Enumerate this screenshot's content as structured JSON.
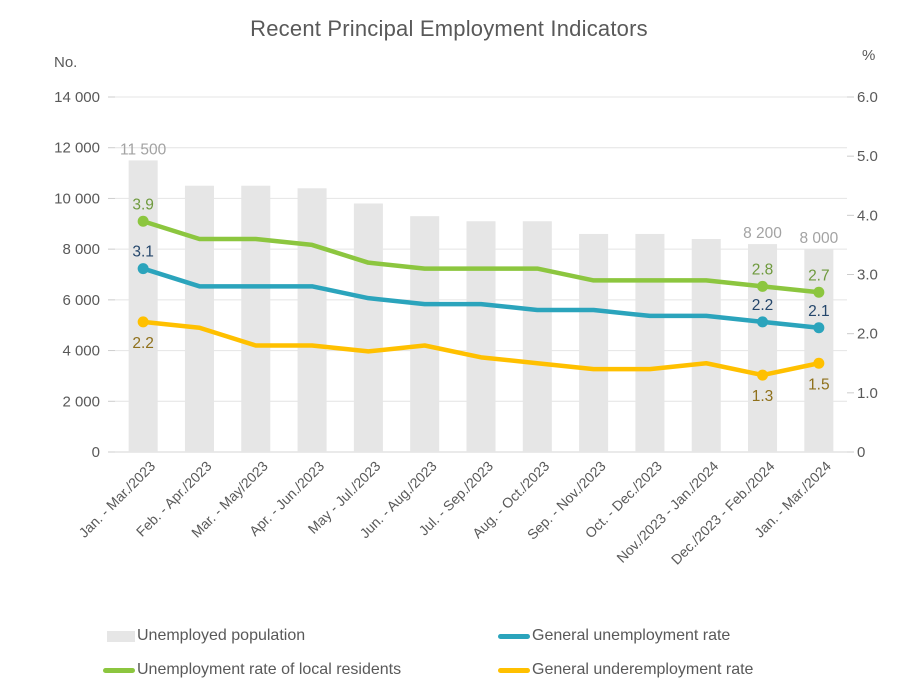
{
  "title": "Recent Principal Employment Indicators",
  "chart_data": {
    "type": "combo-bar-line",
    "title": "Recent Principal Employment Indicators",
    "grid": "horizontal",
    "categories": [
      "Jan. - Mar./2023",
      "Feb. - Apr./2023",
      "Mar. - May/2023",
      "Apr. - Jun./2023",
      "May - Jul./2023",
      "Jun. - Aug./2023",
      "Jul. - Sep./2023",
      "Aug. - Oct./2023",
      "Sep. - Nov./2023",
      "Oct. - Dec./2023",
      "Nov./2023 - Jan./2024",
      "Dec./2023 - Feb./2024",
      "Jan. - Mar./2024"
    ],
    "left_axis": {
      "unit_label": "No.",
      "min": 0,
      "max": 14000,
      "step": 2000,
      "tick_labels": [
        "14 000",
        "12 000",
        "10 000",
        "8 000",
        "6 000",
        "4 000",
        "2 000",
        "0"
      ]
    },
    "right_axis": {
      "unit_label": "%",
      "min": 0,
      "max": 6,
      "step": 1,
      "tick_labels": [
        "6.0",
        "5.0",
        "4.0",
        "3.0",
        "2.0",
        "1.0",
        "0"
      ]
    },
    "series": [
      {
        "name": "Unemployed population",
        "type": "bar",
        "axis": "left",
        "color": "#e6e6e6",
        "label_color": "#a3a3a3",
        "values": [
          11500,
          10500,
          10500,
          10400,
          9800,
          9300,
          9100,
          9100,
          8600,
          8600,
          8400,
          8200,
          8000
        ],
        "point_labels": {
          "0": "11 500",
          "11": "8 200",
          "12": "8 000"
        }
      },
      {
        "name": "General unemployment rate",
        "type": "line",
        "axis": "right",
        "color": "#2ba4bc",
        "label_color": "#24466b",
        "label_position": "above",
        "values": [
          3.1,
          2.8,
          2.8,
          2.8,
          2.6,
          2.5,
          2.5,
          2.4,
          2.4,
          2.3,
          2.3,
          2.2,
          2.1
        ],
        "point_labels": {
          "0": "3.1",
          "11": "2.2",
          "12": "2.1"
        }
      },
      {
        "name": "Unemployment rate of local residents",
        "type": "line",
        "axis": "right",
        "color": "#8cc63f",
        "label_color": "#6e9a3d",
        "label_position": "above",
        "values": [
          3.9,
          3.6,
          3.6,
          3.5,
          3.2,
          3.1,
          3.1,
          3.1,
          2.9,
          2.9,
          2.9,
          2.8,
          2.7
        ],
        "point_labels": {
          "0": "3.9",
          "11": "2.8",
          "12": "2.7"
        }
      },
      {
        "name": "General underemployment rate",
        "type": "line",
        "axis": "right",
        "color": "#ffc000",
        "label_color": "#8f701b",
        "label_position": "below",
        "values": [
          2.2,
          2.1,
          1.8,
          1.8,
          1.7,
          1.8,
          1.6,
          1.5,
          1.4,
          1.4,
          1.5,
          1.3,
          1.5
        ],
        "point_labels": {
          "0": "2.2",
          "11": "1.3",
          "12": "1.5"
        }
      }
    ],
    "marker_points": [
      0,
      11,
      12
    ],
    "legend": {
      "position": "bottom",
      "columns": 2,
      "order": [
        "Unemployed population",
        "General unemployment rate",
        "Unemployment rate of local residents",
        "General underemployment rate"
      ]
    }
  }
}
